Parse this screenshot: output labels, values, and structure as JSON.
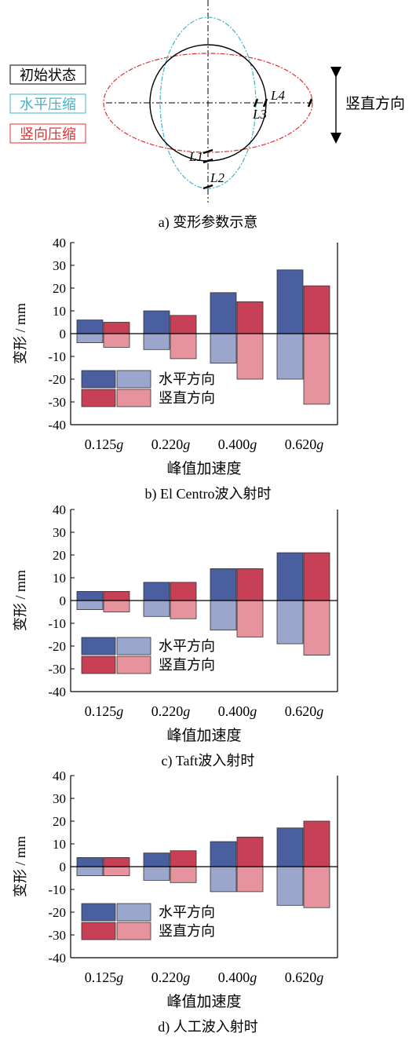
{
  "diagram": {
    "legend": [
      "初始状态",
      "水平压缩",
      "竖向压缩"
    ],
    "legend_colors": [
      "#000000",
      "#3fb4c8",
      "#e03030"
    ],
    "labels": [
      "L1",
      "L2",
      "L3",
      "L4"
    ],
    "direction_label": "竖直方向",
    "caption": "a)  变形参数示意"
  },
  "chart_data": [
    {
      "type": "bar",
      "categories": [
        "0.125g",
        "0.220g",
        "0.400g",
        "0.620g"
      ],
      "xlabel": "峰值加速度",
      "ylabel": "变形 / mm",
      "ylim": [
        -40,
        40
      ],
      "yticks": [
        40,
        30,
        20,
        10,
        0,
        -10,
        -20,
        -30,
        -40
      ],
      "series": [
        {
          "name": "水平方向",
          "positive": [
            6,
            10,
            18,
            28
          ],
          "negative": [
            -4,
            -7,
            -13,
            -20
          ]
        },
        {
          "name": "竖直方向",
          "positive": [
            5,
            8,
            14,
            21
          ],
          "negative": [
            -6,
            -11,
            -20,
            -31
          ]
        }
      ],
      "caption": "b)  El Centro波入射时"
    },
    {
      "type": "bar",
      "categories": [
        "0.125g",
        "0.220g",
        "0.400g",
        "0.620g"
      ],
      "xlabel": "峰值加速度",
      "ylabel": "变形 / mm",
      "ylim": [
        -40,
        40
      ],
      "yticks": [
        40,
        30,
        20,
        10,
        0,
        -10,
        -20,
        -30,
        -40
      ],
      "series": [
        {
          "name": "水平方向",
          "positive": [
            4,
            8,
            14,
            21
          ],
          "negative": [
            -4,
            -7,
            -13,
            -19
          ]
        },
        {
          "name": "竖直方向",
          "positive": [
            4,
            8,
            14,
            21
          ],
          "negative": [
            -5,
            -8,
            -16,
            -24
          ]
        }
      ],
      "caption": "c)  Taft波入射时"
    },
    {
      "type": "bar",
      "categories": [
        "0.125g",
        "0.220g",
        "0.400g",
        "0.620g"
      ],
      "xlabel": "峰值加速度",
      "ylabel": "变形 / mm",
      "ylim": [
        -40,
        40
      ],
      "yticks": [
        40,
        30,
        20,
        10,
        0,
        -10,
        -20,
        -30,
        -40
      ],
      "series": [
        {
          "name": "水平方向",
          "positive": [
            4,
            6,
            11,
            17
          ],
          "negative": [
            -4,
            -6,
            -11,
            -17
          ]
        },
        {
          "name": "竖直方向",
          "positive": [
            4,
            7,
            13,
            20
          ],
          "negative": [
            -4,
            -7,
            -11,
            -18
          ]
        }
      ],
      "caption": "d)  人工波入射时"
    }
  ],
  "colors": {
    "horizontal_dark": "#4a5fa0",
    "horizontal_light": "#9aa6cc",
    "vertical_dark": "#c84055",
    "vertical_light": "#e6939d"
  }
}
